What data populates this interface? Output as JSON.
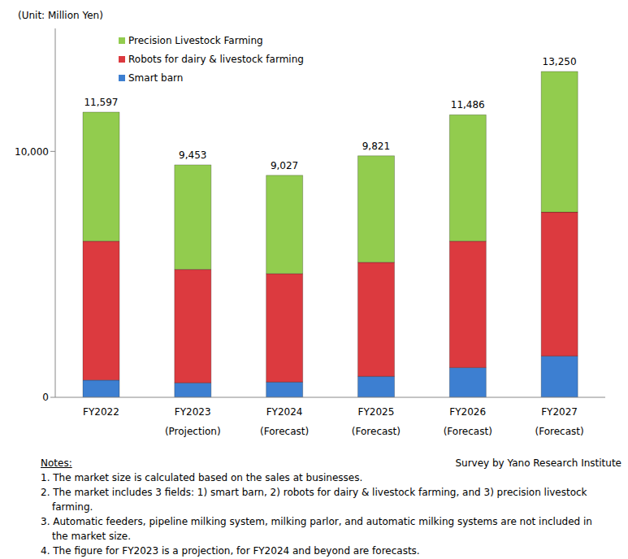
{
  "chart_data": {
    "type": "bar",
    "stacked": true,
    "y_label": "(Unit: Million Yen)",
    "categories": [
      "FY2022",
      "FY2023\n(Projection)",
      "FY2024\n(Forecast)",
      "FY2025\n(Forecast)",
      "FY2026\n(Forecast)",
      "FY2027\n(Forecast)"
    ],
    "series": [
      {
        "name": "Smart barn",
        "color": "#3d7fd1",
        "values": [
          700,
          590,
          620,
          850,
          1210,
          1680
        ]
      },
      {
        "name": "Robots for dairy & livestock farming",
        "color": "#dc3a3f",
        "values": [
          5650,
          4610,
          4410,
          4640,
          5140,
          5850
        ]
      },
      {
        "name": "Precision Livestock Farming",
        "color": "#92cc4e",
        "values": [
          5247,
          4253,
          3997,
          4331,
          5136,
          5720
        ]
      }
    ],
    "totals": [
      11597,
      9453,
      9027,
      9821,
      11486,
      13250
    ],
    "total_labels": [
      "11,597",
      "9,453",
      "9,027",
      "9,821",
      "11,486",
      "13,250"
    ],
    "ylim": [
      0,
      15000
    ],
    "yticks": [
      0,
      {
        "value": 10000,
        "label": "10,000"
      }
    ],
    "grid": false,
    "legend": "upper left",
    "source": "Survey by Yano Research Institute",
    "notes_title": "Notes:",
    "notes": [
      "1. The market size is calculated based on the sales at businesses.",
      "2. The market includes 3 fields: 1) smart barn, 2) robots for dairy & livestock farming, and 3) precision livestock farming.",
      "3. Automatic feeders, pipeline milking system, milking parlor, and automatic milking systems are not included in the market size.",
      "4. The figure for FY2023 is a projection, for FY2024 and beyond are forecasts."
    ]
  }
}
